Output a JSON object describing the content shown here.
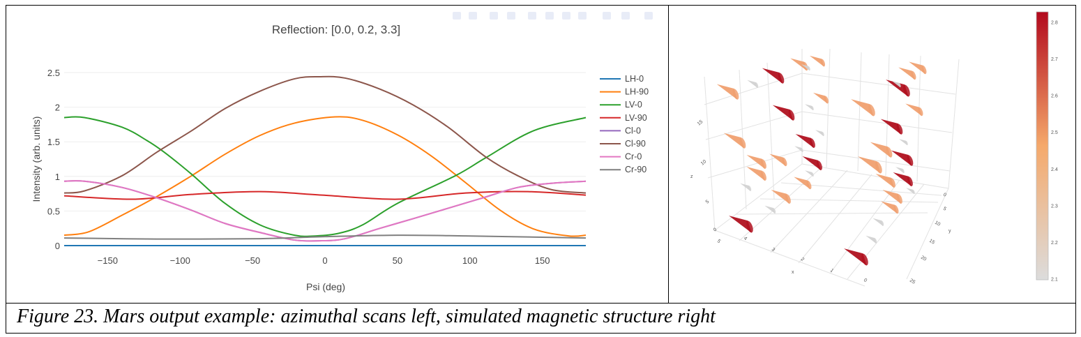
{
  "caption": "Figure 23. Mars output example: azimuthal scans left, simulated magnetic structure right",
  "toolbar": {
    "icons": [
      "camera-icon",
      "save-icon",
      "zoom-icon",
      "pan-icon",
      "zoom-in-icon",
      "zoom-out-icon",
      "autoscale-icon",
      "home-icon",
      "hover-closest-icon",
      "hover-compare-icon",
      "plotly-logo-icon"
    ]
  },
  "chart_data": [
    {
      "type": "line",
      "title": "Reflection: [0.0, 0.2, 3.3]",
      "xlabel": "Psi (deg)",
      "ylabel": "Intensity (arb. units)",
      "xlim": [
        -180,
        180
      ],
      "ylim": [
        0,
        2.5
      ],
      "xticks": [
        "−150",
        "−100",
        "−50",
        "0",
        "50",
        "100",
        "150"
      ],
      "xtick_values": [
        -150,
        -100,
        -50,
        0,
        50,
        100,
        150
      ],
      "yticks": [
        "0",
        "0.5",
        "1",
        "1.5",
        "2",
        "2.5"
      ],
      "ytick_values": [
        0,
        0.5,
        1,
        1.5,
        2,
        2.5
      ],
      "grid": true,
      "legend_position": "right",
      "series": [
        {
          "name": "LH-0",
          "color": "#1f77b4",
          "x": [
            -180,
            180
          ],
          "y": [
            0,
            0
          ]
        },
        {
          "name": "LH-90",
          "color": "#ff7f0e",
          "x": [
            -180,
            -163,
            -140,
            -116,
            -92,
            -69,
            -45,
            -21,
            7,
            26,
            50,
            73,
            97,
            121,
            144,
            168,
            180
          ],
          "y": [
            0.15,
            0.2,
            0.44,
            0.71,
            1.01,
            1.32,
            1.59,
            1.77,
            1.86,
            1.81,
            1.6,
            1.3,
            0.91,
            0.51,
            0.24,
            0.14,
            0.15
          ]
        },
        {
          "name": "LV-0",
          "color": "#2ca02c",
          "x": [
            -180,
            -166,
            -140,
            -123,
            -111,
            -92,
            -69,
            -45,
            -21,
            -6,
            10,
            26,
            50,
            90,
            111,
            144,
            180
          ],
          "y": [
            1.85,
            1.85,
            1.71,
            1.52,
            1.35,
            1.03,
            0.61,
            0.3,
            0.15,
            0.14,
            0.18,
            0.3,
            0.61,
            1.01,
            1.27,
            1.66,
            1.85
          ]
        },
        {
          "name": "LV-90",
          "color": "#d62728",
          "x": [
            -180,
            -133,
            -92,
            -45,
            -2,
            50,
            97,
            140,
            180
          ],
          "y": [
            0.72,
            0.67,
            0.74,
            0.78,
            0.73,
            0.67,
            0.76,
            0.78,
            0.73
          ]
        },
        {
          "name": "Cl-0",
          "color": "#9467bd",
          "x": [
            -180,
            -166,
            -140,
            -116,
            -92,
            -69,
            -45,
            -21,
            -2,
            14,
            38,
            61,
            85,
            109,
            133,
            156,
            180
          ],
          "y": [
            0.93,
            0.93,
            0.84,
            0.69,
            0.51,
            0.32,
            0.19,
            0.08,
            0.07,
            0.1,
            0.25,
            0.39,
            0.54,
            0.69,
            0.84,
            0.9,
            0.93
          ]
        },
        {
          "name": "Cl-90",
          "color": "#8c564b",
          "x": [
            -180,
            -166,
            -140,
            -116,
            -92,
            -69,
            -45,
            -21,
            -4,
            14,
            38,
            61,
            85,
            111,
            133,
            156,
            180
          ],
          "y": [
            0.76,
            0.79,
            1.01,
            1.35,
            1.66,
            1.98,
            2.23,
            2.41,
            2.44,
            2.42,
            2.26,
            2.03,
            1.71,
            1.28,
            1.01,
            0.81,
            0.76
          ]
        },
        {
          "name": "Cr-0",
          "color": "#e377c2",
          "x": [
            -180,
            -166,
            -140,
            -116,
            -92,
            -69,
            -45,
            -21,
            -2,
            14,
            38,
            61,
            85,
            109,
            133,
            156,
            180
          ],
          "y": [
            0.93,
            0.93,
            0.84,
            0.69,
            0.51,
            0.32,
            0.19,
            0.08,
            0.07,
            0.1,
            0.25,
            0.39,
            0.54,
            0.69,
            0.84,
            0.9,
            0.93
          ]
        },
        {
          "name": "Cr-90",
          "color": "#7f7f7f",
          "x": [
            -180,
            -116,
            -45,
            0,
            50,
            97,
            140,
            180
          ],
          "y": [
            0.11,
            0.095,
            0.1,
            0.13,
            0.15,
            0.14,
            0.125,
            0.11
          ]
        }
      ]
    },
    {
      "type": "3d-cone",
      "axes": {
        "x": {
          "label": "x",
          "ticks": [
            "0",
            "1",
            "2",
            "3",
            "4",
            "5"
          ]
        },
        "y": {
          "label": "y",
          "ticks": [
            "0",
            "5",
            "10",
            "15",
            "20",
            "25"
          ]
        },
        "z": {
          "label": "z",
          "ticks": [
            "0",
            "5",
            "10",
            "15"
          ]
        }
      },
      "colorbar": {
        "range": [
          2.1,
          2.8
        ],
        "ticks": [
          "2.1",
          "2.2",
          "2.3",
          "2.4",
          "2.5",
          "2.6",
          "2.7",
          "2.8"
        ],
        "colors": [
          "#dcdcdc",
          "#f5a96b",
          "#b2091d"
        ]
      }
    }
  ]
}
